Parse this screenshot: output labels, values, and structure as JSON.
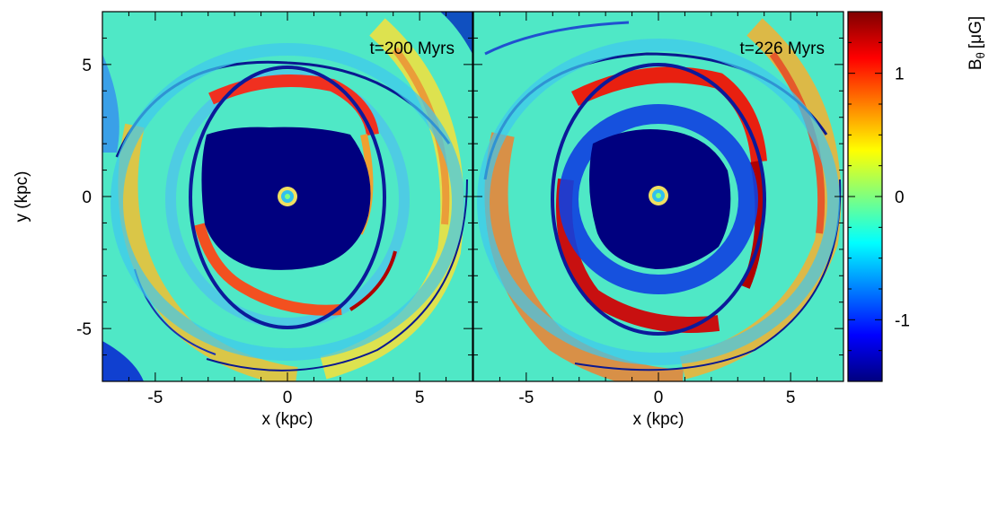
{
  "chart_data": {
    "type": "heatmap",
    "panels": [
      {
        "name": "left",
        "annotation": "t=200 Myrs"
      },
      {
        "name": "right",
        "annotation": "t=226 Myrs"
      }
    ],
    "xlabel": "x (kpc)",
    "ylabel": "y (kpc)",
    "xlim": [
      -7,
      7
    ],
    "ylim": [
      -7,
      7
    ],
    "x_ticks": [
      -5,
      0,
      5
    ],
    "y_ticks": [
      -5,
      0,
      5
    ],
    "x_tick_labels": [
      "-5",
      "0",
      "5"
    ],
    "y_tick_labels": [
      "-5",
      "0",
      "5"
    ],
    "colorbar": {
      "label_main": "B",
      "label_sub": "θ",
      "label_unit": "[μG]",
      "range": [
        -1.5,
        1.5
      ],
      "ticks": [
        -1,
        0,
        1
      ],
      "tick_labels": [
        "-1",
        "0",
        "1"
      ],
      "colormap": "jet",
      "colors": [
        "#00007f",
        "#0000ff",
        "#007fff",
        "#00ffff",
        "#7fff7f",
        "#ffff00",
        "#ff7f00",
        "#ff0000",
        "#7f0000"
      ]
    }
  }
}
